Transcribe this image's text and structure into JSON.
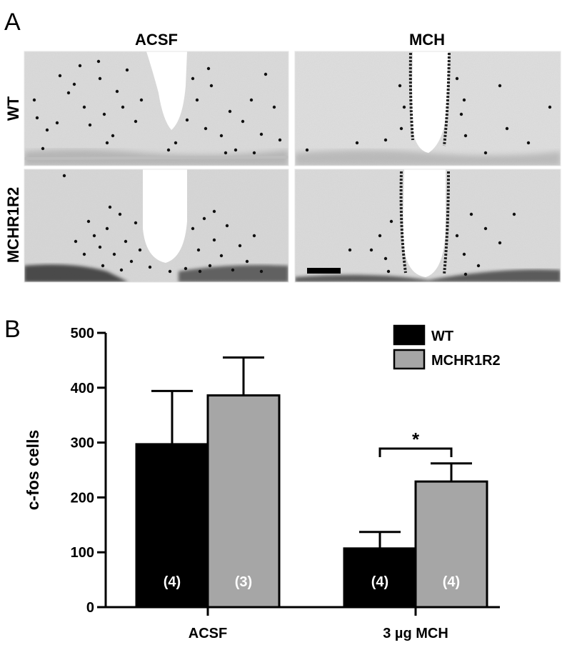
{
  "panel_a": {
    "letter": "A",
    "columns": [
      "ACSF",
      "MCH"
    ],
    "rows": [
      "WT",
      "MCHR1R2"
    ]
  },
  "panel_b": {
    "letter": "B"
  },
  "chart_data": {
    "type": "bar",
    "categories": [
      "ACSF",
      "3 µg MCH"
    ],
    "series": [
      {
        "name": "WT",
        "values": [
          297,
          107
        ],
        "errors": [
          97,
          30
        ],
        "n": [
          "(4)",
          "(4)"
        ],
        "color": "#000000"
      },
      {
        "name": "MCHR1R2",
        "values": [
          386,
          229
        ],
        "errors": [
          69,
          33
        ],
        "n": [
          "(3)",
          "(4)"
        ],
        "color": "#a6a6a6"
      }
    ],
    "ylabel": "c-fos cells",
    "ylim": [
      0,
      500
    ],
    "yticks": [
      0,
      100,
      200,
      300,
      400,
      500
    ],
    "legend_position": "top-right",
    "significance": {
      "category_index": 1,
      "label": "*"
    },
    "grid": false
  }
}
